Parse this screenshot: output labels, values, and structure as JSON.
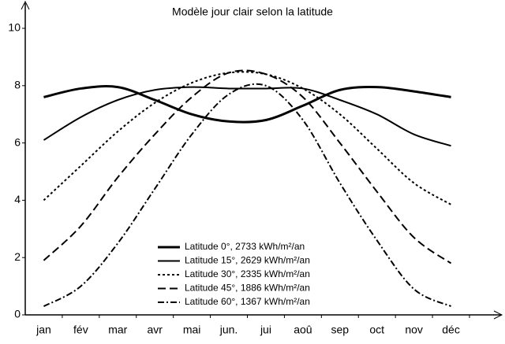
{
  "chart_data": {
    "type": "line",
    "title": "Modèle jour clair selon la latitude",
    "categories": [
      "jan",
      "fév",
      "mar",
      "avr",
      "mai",
      "jun.",
      "jui",
      "aoû",
      "sep",
      "oct",
      "nov",
      "déc"
    ],
    "series": [
      {
        "name": "Latitude  0°, 2733 kWh/m²/an",
        "color": "#000000",
        "width": 3,
        "dash": "",
        "values": [
          7.6,
          7.9,
          7.95,
          7.5,
          7.0,
          6.75,
          6.8,
          7.3,
          7.85,
          7.95,
          7.8,
          7.6
        ]
      },
      {
        "name": "Latitude 15°, 2629 kWh/m²/an",
        "color": "#000000",
        "width": 2,
        "dash": "",
        "values": [
          6.1,
          6.9,
          7.5,
          7.85,
          7.95,
          7.9,
          7.9,
          7.9,
          7.5,
          7.0,
          6.3,
          5.9
        ]
      },
      {
        "name": "Latitude 30°, 2335 kWh/m²/an",
        "color": "#000000",
        "width": 2,
        "dash": "3 3",
        "values": [
          4.0,
          5.2,
          6.4,
          7.4,
          8.1,
          8.45,
          8.4,
          7.9,
          7.0,
          5.8,
          4.6,
          3.85
        ]
      },
      {
        "name": "Latitude 45°, 1886 kWh/m²/an",
        "color": "#000000",
        "width": 2,
        "dash": "10 5",
        "values": [
          1.9,
          3.1,
          4.8,
          6.3,
          7.6,
          8.45,
          8.4,
          7.6,
          6.0,
          4.3,
          2.7,
          1.8
        ]
      },
      {
        "name": "Latitude 60°, 1367 kWh/m²/an",
        "color": "#000000",
        "width": 2,
        "dash": "8 3 2 3",
        "values": [
          0.3,
          1.0,
          2.5,
          4.4,
          6.3,
          7.7,
          8.0,
          6.8,
          4.6,
          2.6,
          0.9,
          0.3
        ]
      }
    ],
    "ylim": [
      0,
      10
    ],
    "yticks": [
      0,
      2,
      4,
      6,
      8,
      10
    ],
    "grid": false,
    "legend": "bottom"
  }
}
